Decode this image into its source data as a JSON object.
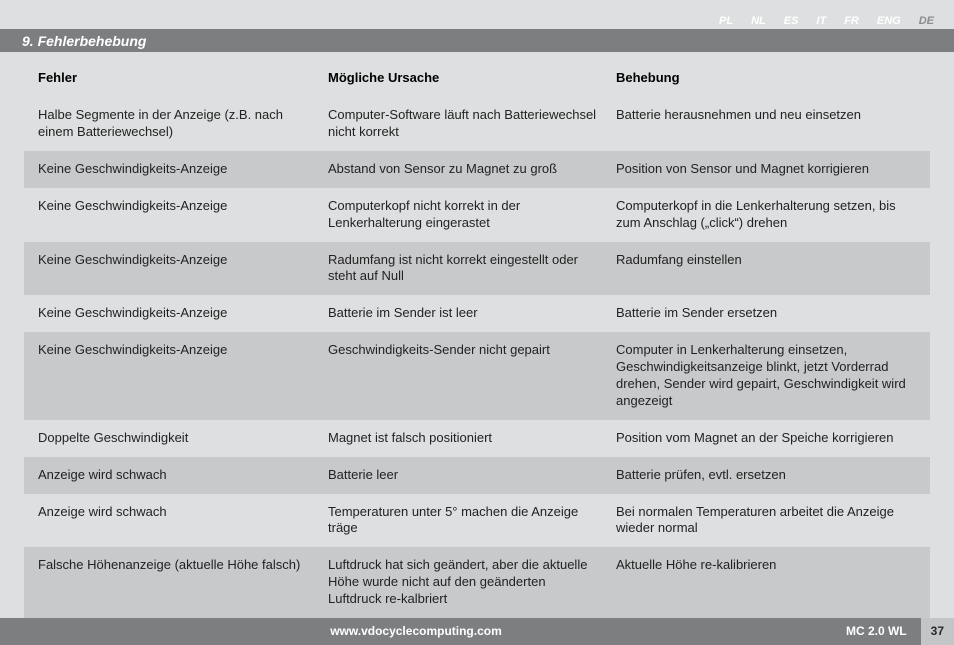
{
  "langs": [
    "PL",
    "NL",
    "ES",
    "IT",
    "FR",
    "ENG",
    "DE"
  ],
  "active_lang_index": 6,
  "section_title": "9.  Fehlerbehebung",
  "columns": [
    "Fehler",
    "Mögliche Ursache",
    "Behebung"
  ],
  "rows": [
    {
      "fehler": "Halbe Segmente in der Anzeige (z.B. nach einem Batteriewechsel)",
      "ursache": "Computer-Software läuft nach Batteriewechsel nicht korrekt",
      "behebung": "Batterie herausnehmen und neu einsetzen"
    },
    {
      "fehler": "Keine Geschwindigkeits-Anzeige",
      "ursache": "Abstand von Sensor zu Magnet zu groß",
      "behebung": "Position von Sensor und Magnet korrigieren"
    },
    {
      "fehler": "Keine Geschwindigkeits-Anzeige",
      "ursache": "Computerkopf nicht korrekt in der Lenkerhalterung eingerastet",
      "behebung": "Computerkopf in die Lenkerhalterung setzen, bis zum Anschlag („click“) drehen"
    },
    {
      "fehler": "Keine Geschwindigkeits-Anzeige",
      "ursache": "Radumfang ist nicht korrekt eingestellt oder steht auf Null",
      "behebung": "Radumfang einstellen"
    },
    {
      "fehler": "Keine Geschwindigkeits-Anzeige",
      "ursache": "Batterie im Sender ist leer",
      "behebung": "Batterie im Sender ersetzen"
    },
    {
      "fehler": "Keine Geschwindigkeits-Anzeige",
      "ursache": "Geschwindigkeits-Sender nicht gepairt",
      "behebung": "Computer in Lenkerhalterung einsetzen, Geschwindigkeitsanzeige blinkt, jetzt Vorder­rad drehen, Sender wird gepairt, Geschwindig­keit wird angezeigt"
    },
    {
      "fehler": "Doppelte Geschwindigkeit",
      "ursache": "Magnet ist falsch positioniert",
      "behebung": "Position vom Magnet an der Speiche korrigieren"
    },
    {
      "fehler": "Anzeige wird schwach",
      "ursache": "Batterie leer",
      "behebung": "Batterie prüfen, evtl. ersetzen"
    },
    {
      "fehler": "Anzeige wird schwach",
      "ursache": "Temperaturen unter 5° machen die Anzeige träge",
      "behebung": "Bei normalen Temperaturen arbeitet die Anzeige wieder normal"
    },
    {
      "fehler": "Falsche Höhenanzeige (aktuelle Höhe falsch)",
      "ursache": "Luftdruck hat sich geändert, aber die aktuelle Höhe wurde nicht auf den geänderten Luftdruck re-kalbriert",
      "behebung": "Aktuelle Höhe re-kalibrieren"
    }
  ],
  "footer": {
    "url": "www.vdocyclecomputing.com",
    "product": "MC 2.0 WL",
    "page": "37"
  }
}
